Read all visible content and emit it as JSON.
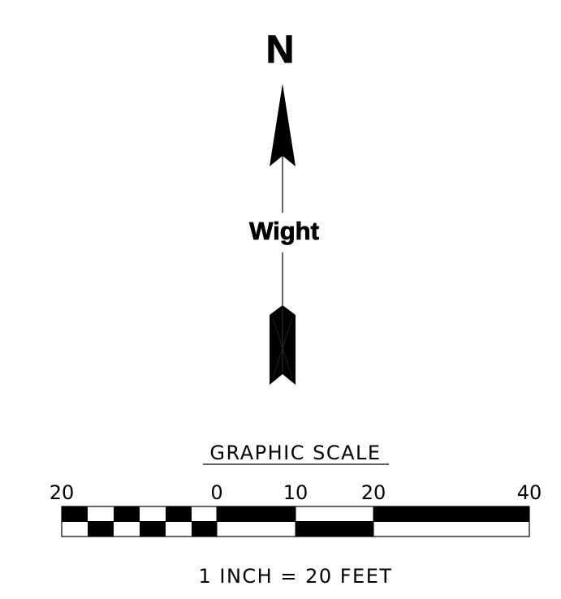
{
  "north_arrow": {
    "letter": "N",
    "label": "Wight",
    "icon": "north-arrow-icon"
  },
  "graphic_scale": {
    "title": "GRAPHIC SCALE",
    "tick_labels": [
      "20",
      "0",
      "10",
      "20",
      "40"
    ],
    "ratio_text": "1 INCH = 20 FEET",
    "colors": {
      "ink": "#000000",
      "paper": "#ffffff"
    }
  }
}
